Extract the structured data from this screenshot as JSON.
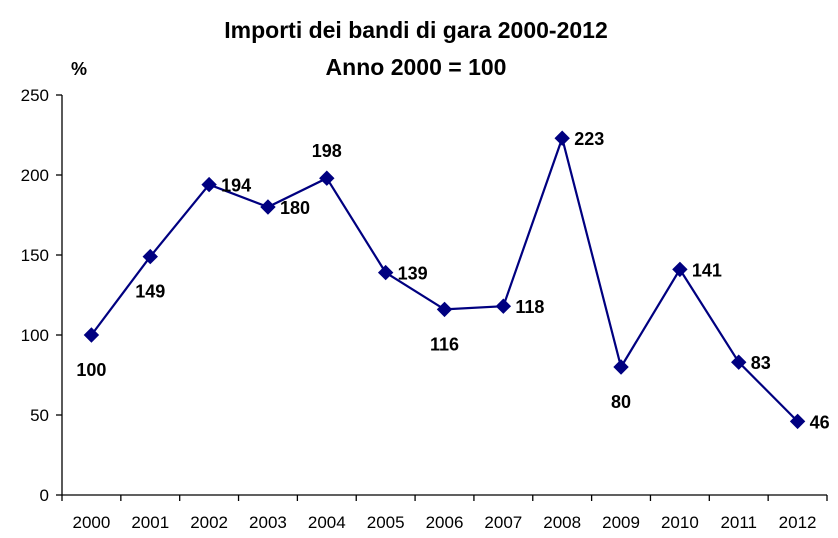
{
  "chart_data": {
    "type": "line",
    "title": "Importi dei bandi di gara  2000-2012",
    "subtitle": "Anno 2000 = 100",
    "ylabel": "%",
    "xlabel": "",
    "categories": [
      "2000",
      "2001",
      "2002",
      "2003",
      "2004",
      "2005",
      "2006",
      "2007",
      "2008",
      "2009",
      "2010",
      "2011",
      "2012"
    ],
    "series": [
      {
        "values": [
          100,
          149,
          194,
          180,
          198,
          139,
          116,
          118,
          223,
          80,
          141,
          83,
          46
        ],
        "color": "#000080",
        "marker": "diamond"
      }
    ],
    "data_labels": [
      "100",
      "149",
      "194",
      "180",
      "198",
      "139",
      "116",
      "118",
      "223",
      "80",
      "141",
      "83",
      "46"
    ],
    "ylim": [
      0,
      250
    ],
    "yticks": [
      0,
      50,
      100,
      150,
      200,
      250
    ],
    "ytick_labels": [
      "0",
      "50",
      "100",
      "150",
      "200",
      "250"
    ],
    "grid": false,
    "legend": "none"
  }
}
